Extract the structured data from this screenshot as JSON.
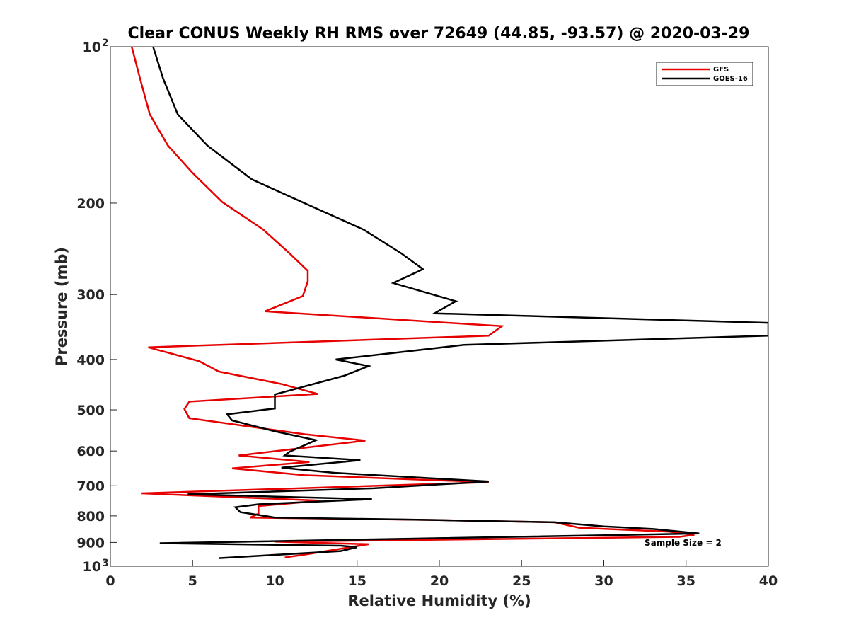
{
  "chart_data": {
    "type": "line",
    "title": "Clear CONUS Weekly RH RMS over 72649 (44.85, -93.57) @ 2020-03-29",
    "xlabel": "Relative Humidity (%)",
    "ylabel": "Pressure (mb)",
    "xlim": [
      0,
      40
    ],
    "ylim": [
      100,
      1000
    ],
    "y_scale": "log",
    "y_reversed": true,
    "x_ticks": [
      {
        "value": 0,
        "label": "0"
      },
      {
        "value": 5,
        "label": "5"
      },
      {
        "value": 10,
        "label": "10"
      },
      {
        "value": 15,
        "label": "15"
      },
      {
        "value": 20,
        "label": "20"
      },
      {
        "value": 25,
        "label": "25"
      },
      {
        "value": 30,
        "label": "30"
      },
      {
        "value": 35,
        "label": "35"
      },
      {
        "value": 40,
        "label": "40"
      }
    ],
    "y_ticks": [
      {
        "value": 100,
        "label": "10",
        "sup": "2"
      },
      {
        "value": 200,
        "label": "200",
        "sup": ""
      },
      {
        "value": 300,
        "label": "300",
        "sup": ""
      },
      {
        "value": 400,
        "label": "400",
        "sup": ""
      },
      {
        "value": 500,
        "label": "500",
        "sup": ""
      },
      {
        "value": 600,
        "label": "600",
        "sup": ""
      },
      {
        "value": 700,
        "label": "700",
        "sup": ""
      },
      {
        "value": 800,
        "label": "800",
        "sup": ""
      },
      {
        "value": 900,
        "label": "900",
        "sup": ""
      },
      {
        "value": 1000,
        "label": "10",
        "sup": "3"
      }
    ],
    "legend_position": "top-right",
    "grid": false,
    "annotation": "Sample Size = 2",
    "series": [
      {
        "name": "GFS",
        "color": "#e60000",
        "points": [
          [
            1.3,
            100
          ],
          [
            1.8,
            115
          ],
          [
            2.4,
            135
          ],
          [
            3.5,
            155
          ],
          [
            5.0,
            175
          ],
          [
            6.8,
            199
          ],
          [
            9.3,
            225
          ],
          [
            10.9,
            250
          ],
          [
            12.0,
            270
          ],
          [
            12.0,
            283
          ],
          [
            11.7,
            302
          ],
          [
            9.4,
            323
          ],
          [
            23.8,
            345
          ],
          [
            23.0,
            360
          ],
          [
            2.3,
            379
          ],
          [
            5.4,
            403
          ],
          [
            6.6,
            422
          ],
          [
            10.4,
            446
          ],
          [
            12.6,
            466
          ],
          [
            4.8,
            482
          ],
          [
            4.5,
            498
          ],
          [
            4.8,
            519
          ],
          [
            11.8,
            557
          ],
          [
            15.5,
            573
          ],
          [
            7.8,
            612
          ],
          [
            12.1,
            630
          ],
          [
            7.4,
            648
          ],
          [
            11.8,
            668
          ],
          [
            23.0,
            689
          ],
          [
            1.9,
            724
          ],
          [
            12.8,
            748
          ],
          [
            9.0,
            766
          ],
          [
            9.0,
            792
          ],
          [
            8.5,
            806
          ],
          [
            20.0,
            815
          ],
          [
            27.0,
            823
          ],
          [
            28.5,
            843
          ],
          [
            34.0,
            858
          ],
          [
            35.5,
            870
          ],
          [
            34.6,
            878
          ],
          [
            10.0,
            897
          ],
          [
            15.7,
            907
          ],
          [
            11.8,
            950
          ],
          [
            10.6,
            962
          ]
        ]
      },
      {
        "name": "GOES-16",
        "color": "#000000",
        "points": [
          [
            2.6,
            100
          ],
          [
            3.2,
            115
          ],
          [
            4.1,
            135
          ],
          [
            5.9,
            155
          ],
          [
            8.6,
            180
          ],
          [
            11.8,
            200
          ],
          [
            15.4,
            225
          ],
          [
            17.7,
            250
          ],
          [
            19.0,
            268
          ],
          [
            17.2,
            285
          ],
          [
            21.0,
            309
          ],
          [
            19.7,
            326
          ],
          [
            40.0,
            340
          ],
          [
            40.0,
            360
          ],
          [
            21.5,
            375
          ],
          [
            13.7,
            400
          ],
          [
            15.7,
            412
          ],
          [
            14.2,
            430
          ],
          [
            10.0,
            467
          ],
          [
            10.0,
            497
          ],
          [
            7.1,
            510
          ],
          [
            7.4,
            524
          ],
          [
            10.0,
            550
          ],
          [
            12.5,
            572
          ],
          [
            10.9,
            602
          ],
          [
            10.6,
            612
          ],
          [
            15.2,
            625
          ],
          [
            10.4,
            646
          ],
          [
            13.6,
            661
          ],
          [
            23.0,
            687
          ],
          [
            16.0,
            708
          ],
          [
            4.7,
            727
          ],
          [
            15.9,
            743
          ],
          [
            9.0,
            760
          ],
          [
            7.6,
            770
          ],
          [
            7.9,
            787
          ],
          [
            10.0,
            806
          ],
          [
            20.0,
            815
          ],
          [
            27.0,
            823
          ],
          [
            30.0,
            838
          ],
          [
            33.0,
            848
          ],
          [
            35.8,
            865
          ],
          [
            3.0,
            903
          ],
          [
            14.0,
            913
          ],
          [
            15.0,
            919
          ],
          [
            14.0,
            935
          ],
          [
            6.6,
            965
          ]
        ]
      }
    ]
  }
}
